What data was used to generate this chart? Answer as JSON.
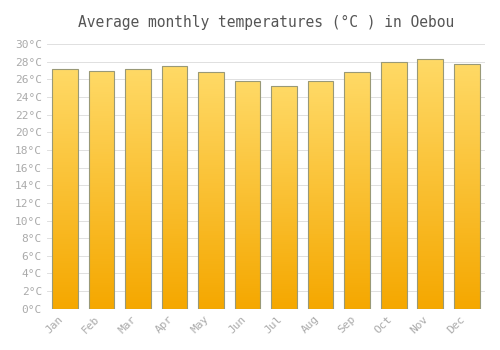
{
  "title": "Average monthly temperatures (°C ) in Oebou",
  "months": [
    "Jan",
    "Feb",
    "Mar",
    "Apr",
    "May",
    "Jun",
    "Jul",
    "Aug",
    "Sep",
    "Oct",
    "Nov",
    "Dec"
  ],
  "values": [
    27.2,
    27.0,
    27.2,
    27.5,
    26.8,
    25.8,
    25.3,
    25.8,
    26.8,
    28.0,
    28.3,
    27.8
  ],
  "bar_color_bottom": "#F5A800",
  "bar_color_top": "#FFD966",
  "bar_edge_color": "#999977",
  "background_color": "#FFFFFF",
  "plot_bg_color": "#FFFFFF",
  "grid_color": "#E0E0E0",
  "ylim": [
    0,
    31
  ],
  "yticks": [
    0,
    2,
    4,
    6,
    8,
    10,
    12,
    14,
    16,
    18,
    20,
    22,
    24,
    26,
    28,
    30
  ],
  "title_fontsize": 10.5,
  "tick_fontsize": 8,
  "tick_color": "#AAAAAA",
  "title_color": "#555555",
  "font_family": "monospace",
  "bar_width": 0.7,
  "n_grad": 100
}
